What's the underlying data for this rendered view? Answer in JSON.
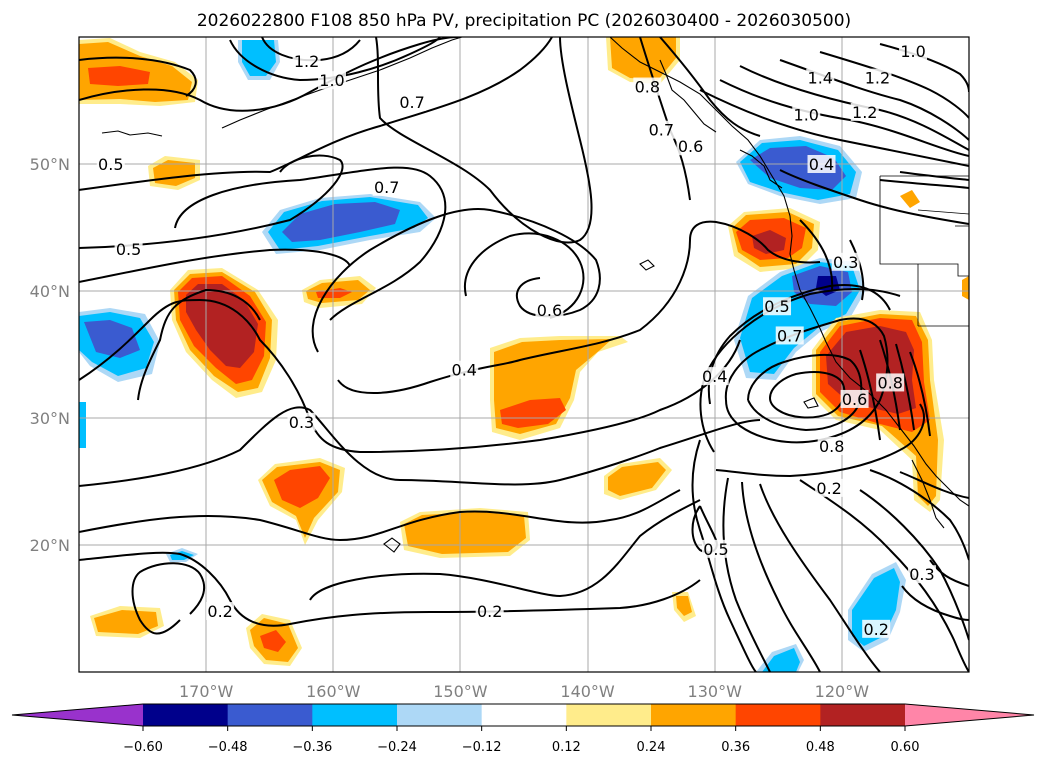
{
  "chart_data": {
    "type": "map",
    "title": "2026022800 F108 850 hPa PV, precipitation PC (2026030400 - 2026030500)",
    "projection": "equirectangular",
    "lon_range": [
      -180,
      -110
    ],
    "lat_range": [
      10,
      60
    ],
    "x_ticks": [
      "170°W",
      "160°W",
      "150°W",
      "140°W",
      "130°W",
      "120°W"
    ],
    "x_tick_values": [
      -170,
      -160,
      -150,
      -140,
      -130,
      -120
    ],
    "y_ticks": [
      "20°N",
      "30°N",
      "40°N",
      "50°N"
    ],
    "y_tick_values": [
      20,
      30,
      40,
      50
    ],
    "gridlines": true,
    "contour_labels": [
      {
        "text": "1.2",
        "lon": -162.1,
        "lat": 58.1
      },
      {
        "text": "1.0",
        "lon": -160.1,
        "lat": 56.6
      },
      {
        "text": "0.7",
        "lon": -153.8,
        "lat": 54.9
      },
      {
        "text": "0.8",
        "lon": -135.3,
        "lat": 56.1
      },
      {
        "text": "0.7",
        "lon": -134.2,
        "lat": 52.7
      },
      {
        "text": "0.6",
        "lon": -131.9,
        "lat": 51.4
      },
      {
        "text": "1.0",
        "lon": -114.4,
        "lat": 58.9
      },
      {
        "text": "1.4",
        "lon": -121.7,
        "lat": 56.8
      },
      {
        "text": "1.2",
        "lon": -117.2,
        "lat": 56.8
      },
      {
        "text": "1.0",
        "lon": -122.8,
        "lat": 53.9
      },
      {
        "text": "1.2",
        "lon": -118.2,
        "lat": 54.1
      },
      {
        "text": "0.4",
        "lon": -121.6,
        "lat": 50.0
      },
      {
        "text": "0.5",
        "lon": -177.5,
        "lat": 50.0
      },
      {
        "text": "0.7",
        "lon": -155.8,
        "lat": 48.2
      },
      {
        "text": "0.5",
        "lon": -176.1,
        "lat": 43.3
      },
      {
        "text": "0.6",
        "lon": -143.0,
        "lat": 38.5
      },
      {
        "text": "0.3",
        "lon": -119.7,
        "lat": 42.3
      },
      {
        "text": "0.5",
        "lon": -125.1,
        "lat": 38.8
      },
      {
        "text": "0.7",
        "lon": -124.1,
        "lat": 36.5
      },
      {
        "text": "0.4",
        "lon": -149.7,
        "lat": 33.8
      },
      {
        "text": "0.4",
        "lon": -130.0,
        "lat": 33.3
      },
      {
        "text": "0.8",
        "lon": -116.2,
        "lat": 32.8
      },
      {
        "text": "0.6",
        "lon": -119.0,
        "lat": 31.5
      },
      {
        "text": "0.3",
        "lon": -162.5,
        "lat": 29.7
      },
      {
        "text": "0.8",
        "lon": -120.8,
        "lat": 27.8
      },
      {
        "text": "0.2",
        "lon": -121.0,
        "lat": 24.5
      },
      {
        "text": "0.5",
        "lon": -129.9,
        "lat": 19.7
      },
      {
        "text": "0.3",
        "lon": -113.7,
        "lat": 17.7
      },
      {
        "text": "0.2",
        "lon": -168.9,
        "lat": 14.8
      },
      {
        "text": "0.2",
        "lon": -147.7,
        "lat": 14.8
      },
      {
        "text": "0.2",
        "lon": -117.3,
        "lat": 13.4
      }
    ],
    "colorbar": {
      "orientation": "horizontal",
      "extend": "both",
      "ticks": [
        "−0.60",
        "−0.48",
        "−0.36",
        "−0.24",
        "−0.12",
        "0.12",
        "0.24",
        "0.36",
        "0.48",
        "0.60"
      ],
      "levels": [
        -0.6,
        -0.48,
        -0.36,
        -0.24,
        -0.12,
        0.12,
        0.24,
        0.36,
        0.48,
        0.6
      ],
      "colors": [
        "#9932cc",
        "#00008b",
        "#3a5bd0",
        "#00bfff",
        "#add8f6",
        "#ffffff",
        "#ffec8b",
        "#ffa500",
        "#ff4500",
        "#b22222",
        "#ff85a8"
      ]
    }
  }
}
